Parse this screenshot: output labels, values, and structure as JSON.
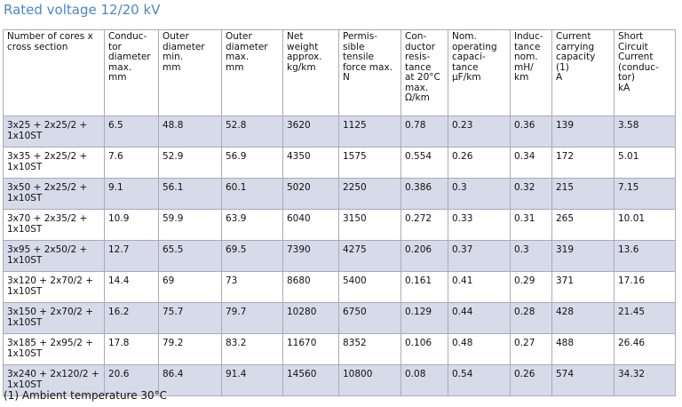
{
  "title": "Rated voltage 12/20 kV",
  "table": {
    "header": [
      "Number of cores x\ncross section",
      "Conduc-\ntor\ndiameter\nmax.\nmm",
      "Outer\ndiameter\nmin.\nmm",
      "Outer\ndiameter\nmax.\nmm",
      "Net\nweight\napprox.\nkg/km",
      "Permis-\nsible\ntensile\nforce max.\nN",
      "Con-\nductor\nresis-\ntance\nat 20°C\nmax.\nΩ/km",
      "Nom.\noperating\ncapaci-\ntance\nµF/km",
      "Induc-\ntance\nnom.\nmH/\nkm",
      "Current\ncarrying\ncapacity\n(1)\nA",
      "Short\nCircuit\nCurrent\n(conduc-\ntor)\nkA"
    ],
    "rows": [
      [
        "3x25 + 2x25/2 + 1x10ST",
        "6.5",
        "48.8",
        "52.8",
        "3620",
        "1125",
        "0.78",
        "0.23",
        "0.36",
        "139",
        "3.58"
      ],
      [
        "3x35 + 2x25/2 + 1x10ST",
        "7.6",
        "52.9",
        "56.9",
        "4350",
        "1575",
        "0.554",
        "0.26",
        "0.34",
        "172",
        "5.01"
      ],
      [
        "3x50 + 2x25/2 + 1x10ST",
        "9.1",
        "56.1",
        "60.1",
        "5020",
        "2250",
        "0.386",
        "0.3",
        "0.32",
        "215",
        "7.15"
      ],
      [
        "3x70 + 2x35/2 + 1x10ST",
        "10.9",
        "59.9",
        "63.9",
        "6040",
        "3150",
        "0.272",
        "0.33",
        "0.31",
        "265",
        "10.01"
      ],
      [
        "3x95 + 2x50/2 + 1x10ST",
        "12.7",
        "65.5",
        "69.5",
        "7390",
        "4275",
        "0.206",
        "0.37",
        "0.3",
        "319",
        "13.6"
      ],
      [
        "3x120 + 2x70/2 + 1x10ST",
        "14.4",
        "69",
        "73",
        "8680",
        "5400",
        "0.161",
        "0.41",
        "0.29",
        "371",
        "17.16"
      ],
      [
        "3x150 + 2x70/2 + 1x10ST",
        "16.2",
        "75.7",
        "79.7",
        "10280",
        "6750",
        "0.129",
        "0.44",
        "0.28",
        "428",
        "21.45"
      ],
      [
        "3x185 + 2x95/2 + 1x10ST",
        "17.8",
        "79.2",
        "83.2",
        "11670",
        "8352",
        "0.106",
        "0.48",
        "0.27",
        "488",
        "26.46"
      ],
      [
        "3x240 + 2x120/2 + 1x10ST",
        "20.6",
        "86.4",
        "91.4",
        "14560",
        "10800",
        "0.08",
        "0.54",
        "0.26",
        "574",
        "34.32"
      ]
    ]
  },
  "footnote": "(1) Ambient temperature 30°C"
}
